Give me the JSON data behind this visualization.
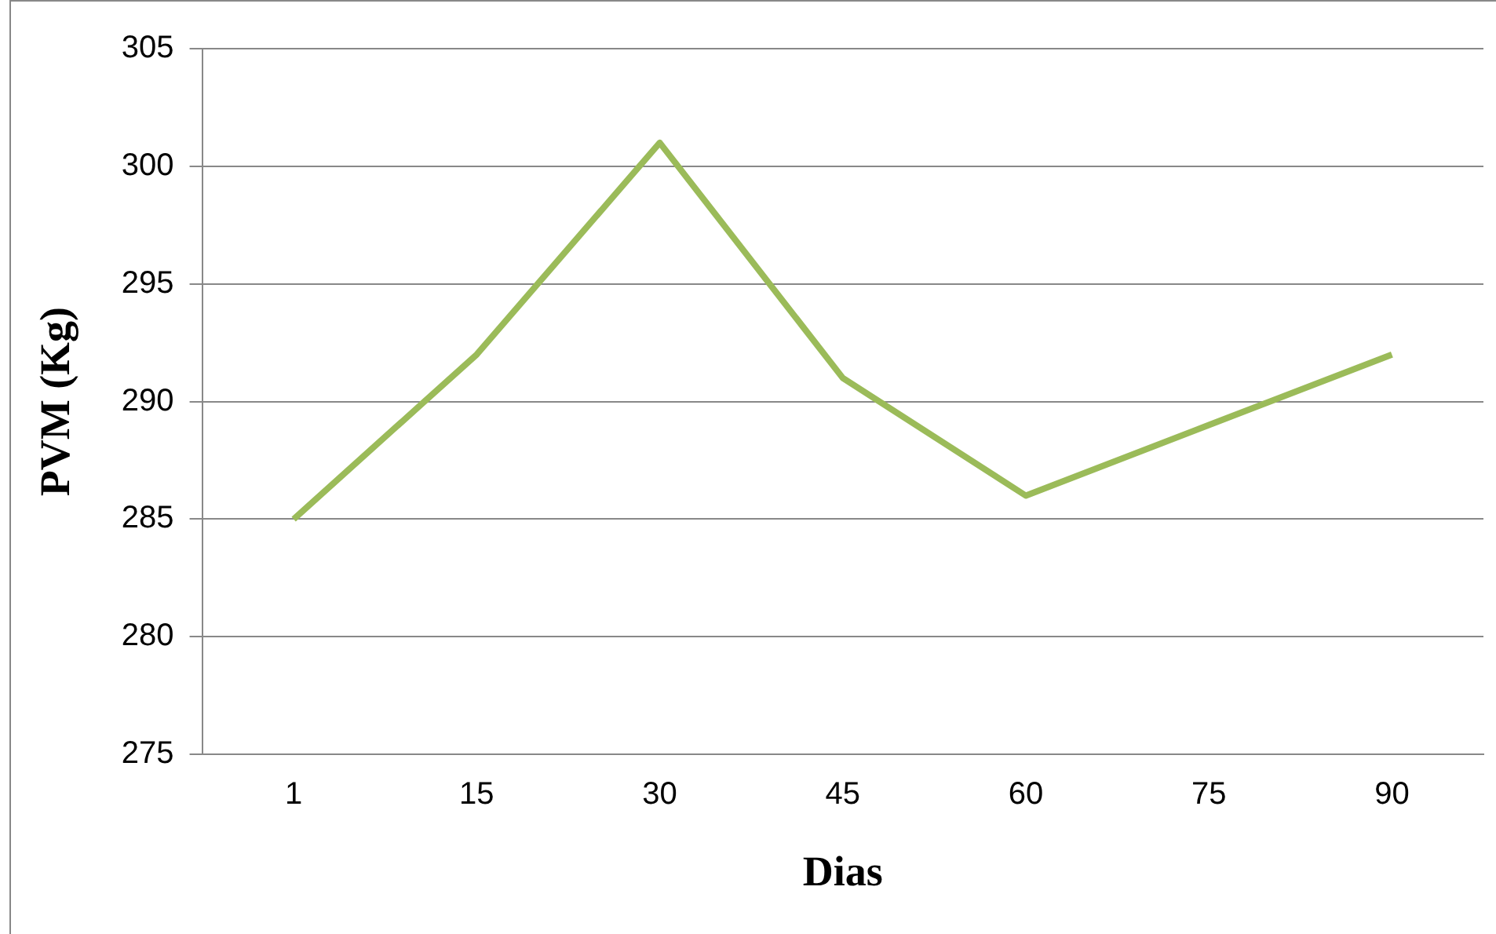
{
  "chart_data": {
    "type": "line",
    "xlabel": "Dias",
    "ylabel": "PVM (Kg)",
    "categories": [
      "1",
      "15",
      "30",
      "45",
      "60",
      "75",
      "90"
    ],
    "series": [
      {
        "color": "#9bbb59",
        "values": [
          285,
          292,
          301,
          291,
          286,
          289,
          292
        ]
      }
    ],
    "ylim": [
      275,
      305
    ],
    "yticks": [
      275,
      280,
      285,
      290,
      295,
      300,
      305
    ],
    "grid": "y",
    "legend": false,
    "marker": "none",
    "line_style": "solid"
  }
}
